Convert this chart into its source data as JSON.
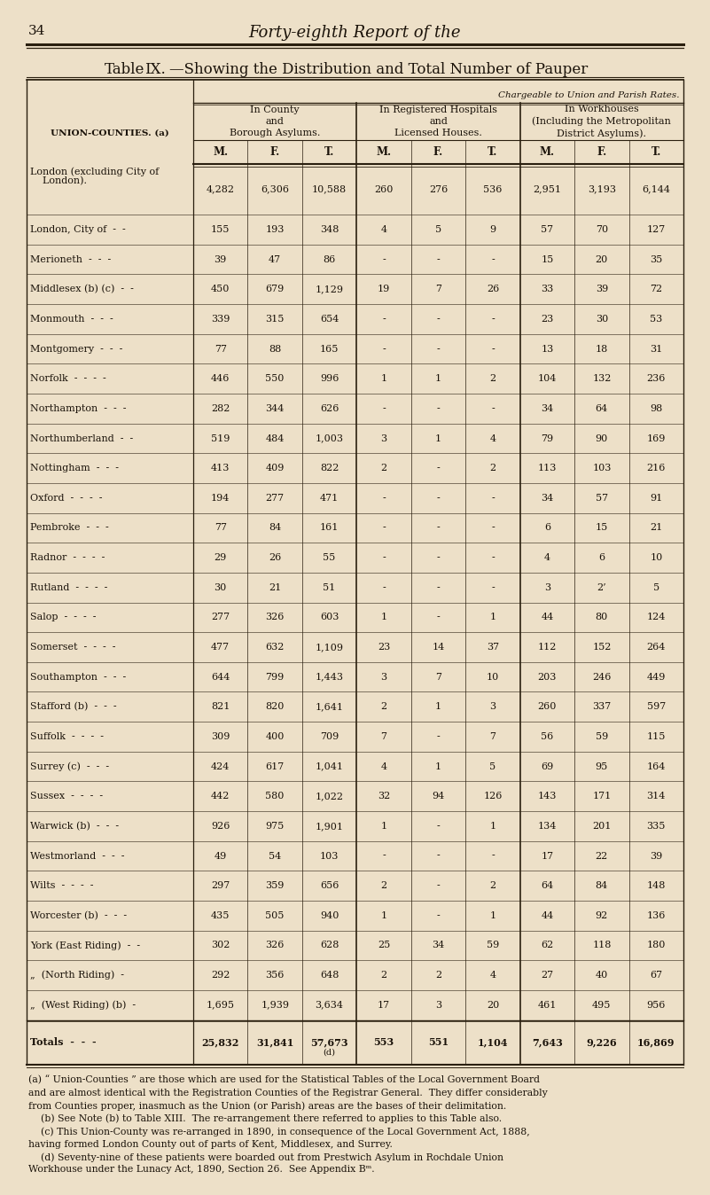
{
  "page_number": "34",
  "page_header": "Forty-eighth Report of the",
  "title_prefix": "Table",
  "title_roman": "IX.",
  "title_rest": "—Showing the Distribution and Total Number of Pauper",
  "subtitle": "Chargeable to Union and Parish Rates.",
  "col_group1": "In County\nand\nBorough Asylums.",
  "col_group2": "In Registered Hospitals\nand\nLicensed Houses.",
  "col_group3": "In Workhouses\n(Including the Metropolitan\nDistrict Asylums).",
  "row_label_col": "UNION-COUNTIES. (a)",
  "col_headers": [
    "M.",
    "F.",
    "T.",
    "M.",
    "F.",
    "T.",
    "M.",
    "F.",
    "T."
  ],
  "rows": [
    {
      "label": "London (excluding City of\n    London).",
      "data": [
        "4,282",
        "6,306",
        "10,588",
        "260",
        "276",
        "536",
        "2,951",
        "3,193",
        "6,144"
      ],
      "tall": true
    },
    {
      "label": "London, City of  -  -",
      "data": [
        "155",
        "193",
        "348",
        "4",
        "5",
        "9",
        "57",
        "70",
        "127"
      ]
    },
    {
      "label": "Merioneth  -  -  -",
      "data": [
        "39",
        "47",
        "86",
        "-",
        "-",
        "-",
        "15",
        "20",
        "35"
      ]
    },
    {
      "label": "Middlesex (b) (c)  -  -",
      "data": [
        "450",
        "679",
        "1,129",
        "19",
        "7",
        "26",
        "33",
        "39",
        "72"
      ]
    },
    {
      "label": "Monmouth  -  -  -",
      "data": [
        "339",
        "315",
        "654",
        "-",
        "-",
        "-",
        "23",
        "30",
        "53"
      ]
    },
    {
      "label": "Montgomery  -  -  -",
      "data": [
        "77",
        "88",
        "165",
        "-",
        "-",
        "-",
        "13",
        "18",
        "31"
      ]
    },
    {
      "label": "Norfolk  -  -  -  -",
      "data": [
        "446",
        "550",
        "996",
        "1",
        "1",
        "2",
        "104",
        "132",
        "236"
      ]
    },
    {
      "label": "Northampton  -  -  -",
      "data": [
        "282",
        "344",
        "626",
        "-",
        "-",
        "-",
        "34",
        "64",
        "98"
      ]
    },
    {
      "label": "Northumberland  -  -",
      "data": [
        "519",
        "484",
        "1,003",
        "3",
        "1",
        "4",
        "79",
        "90",
        "169"
      ]
    },
    {
      "label": "Nottingham  -  -  -",
      "data": [
        "413",
        "409",
        "822",
        "2",
        "-",
        "2",
        "113",
        "103",
        "216"
      ]
    },
    {
      "label": "Oxford  -  -  -  -",
      "data": [
        "194",
        "277",
        "471",
        "-",
        "-",
        "-",
        "34",
        "57",
        "91"
      ]
    },
    {
      "label": "Pembroke  -  -  -",
      "data": [
        "77",
        "84",
        "161",
        "-",
        "-",
        "-",
        "6",
        "15",
        "21"
      ]
    },
    {
      "label": "Radnor  -  -  -  -",
      "data": [
        "29",
        "26",
        "55",
        "-",
        "-",
        "-",
        "4",
        "6",
        "10"
      ]
    },
    {
      "label": "Rutland  -  -  -  -",
      "data": [
        "30",
        "21",
        "51",
        "-",
        "-",
        "-",
        "3",
        "2’",
        "5"
      ]
    },
    {
      "label": "Salop  -  -  -  -",
      "data": [
        "277",
        "326",
        "603",
        "1",
        "-",
        "1",
        "44",
        "80",
        "124"
      ]
    },
    {
      "label": "Somerset  -  -  -  -",
      "data": [
        "477",
        "632",
        "1,109",
        "23",
        "14",
        "37",
        "112",
        "152",
        "264"
      ]
    },
    {
      "label": "Southampton  -  -  -",
      "data": [
        "644",
        "799",
        "1,443",
        "3",
        "7",
        "10",
        "203",
        "246",
        "449"
      ]
    },
    {
      "label": "Stafford (b)  -  -  -",
      "data": [
        "821",
        "820",
        "1,641",
        "2",
        "1",
        "3",
        "260",
        "337",
        "597"
      ]
    },
    {
      "label": "Suffolk  -  -  -  -",
      "data": [
        "309",
        "400",
        "709",
        "7",
        "-",
        "7",
        "56",
        "59",
        "115"
      ]
    },
    {
      "label": "Surrey (c)  -  -  -",
      "data": [
        "424",
        "617",
        "1,041",
        "4",
        "1",
        "5",
        "69",
        "95",
        "164"
      ]
    },
    {
      "label": "Sussex  -  -  -  -",
      "data": [
        "442",
        "580",
        "1,022",
        "32",
        "94",
        "126",
        "143",
        "171",
        "314"
      ]
    },
    {
      "label": "Warwick (b)  -  -  -",
      "data": [
        "926",
        "975",
        "1,901",
        "1",
        "-",
        "1",
        "134",
        "201",
        "335"
      ]
    },
    {
      "label": "Westmorland  -  -  -",
      "data": [
        "49",
        "54",
        "103",
        "-",
        "-",
        "-",
        "17",
        "22",
        "39"
      ]
    },
    {
      "label": "Wilts  -  -  -  -",
      "data": [
        "297",
        "359",
        "656",
        "2",
        "-",
        "2",
        "64",
        "84",
        "148"
      ]
    },
    {
      "label": "Worcester (b)  -  -  -",
      "data": [
        "435",
        "505",
        "940",
        "1",
        "-",
        "1",
        "44",
        "92",
        "136"
      ]
    },
    {
      "label": "York (East Riding)  -  -",
      "data": [
        "302",
        "326",
        "628",
        "25",
        "34",
        "59",
        "62",
        "118",
        "180"
      ]
    },
    {
      "label": "„  (North Riding)  -",
      "data": [
        "292",
        "356",
        "648",
        "2",
        "2",
        "4",
        "27",
        "40",
        "67"
      ]
    },
    {
      "label": "„  (West Riding) (b)  -",
      "data": [
        "1,695",
        "1,939",
        "3,634",
        "17",
        "3",
        "20",
        "461",
        "495",
        "956"
      ]
    },
    {
      "label": "Totals  -  -  -",
      "data": [
        "25,832",
        "31,841",
        "57,673",
        "553",
        "551",
        "1,104",
        "7,643",
        "9,226",
        "16,869"
      ],
      "is_total": true,
      "total_note": "(d)"
    }
  ],
  "footnotes": [
    "(a) “ Union-Counties ” are those which are used for the Statistical Tables of the Local Government Board",
    "and are almost identical with the Registration Counties of the Registrar General.  They differ considerably",
    "from Counties proper, inasmuch as the Union (or Parish) areas are the bases of their delimitation.",
    "    (b) See Note (b) to Table XIII.  The re-arrangement there referred to applies to this Table also.",
    "    (c) This Union-County was re-arranged in 1890, in consequence of the Local Government Act, 1888,",
    "having formed London County out of parts of Kent, Middlesex, and Surrey.",
    "    (d) Seventy-nine of these patients were boarded out from Prestwich Asylum in Rochdale Union",
    "Workhouse under the Lunacy Act, 1890, Section 26.  See Appendix Bᵐ."
  ],
  "bg_color": "#ede0c8",
  "text_color": "#1a1209",
  "line_color": "#2a1f0f"
}
